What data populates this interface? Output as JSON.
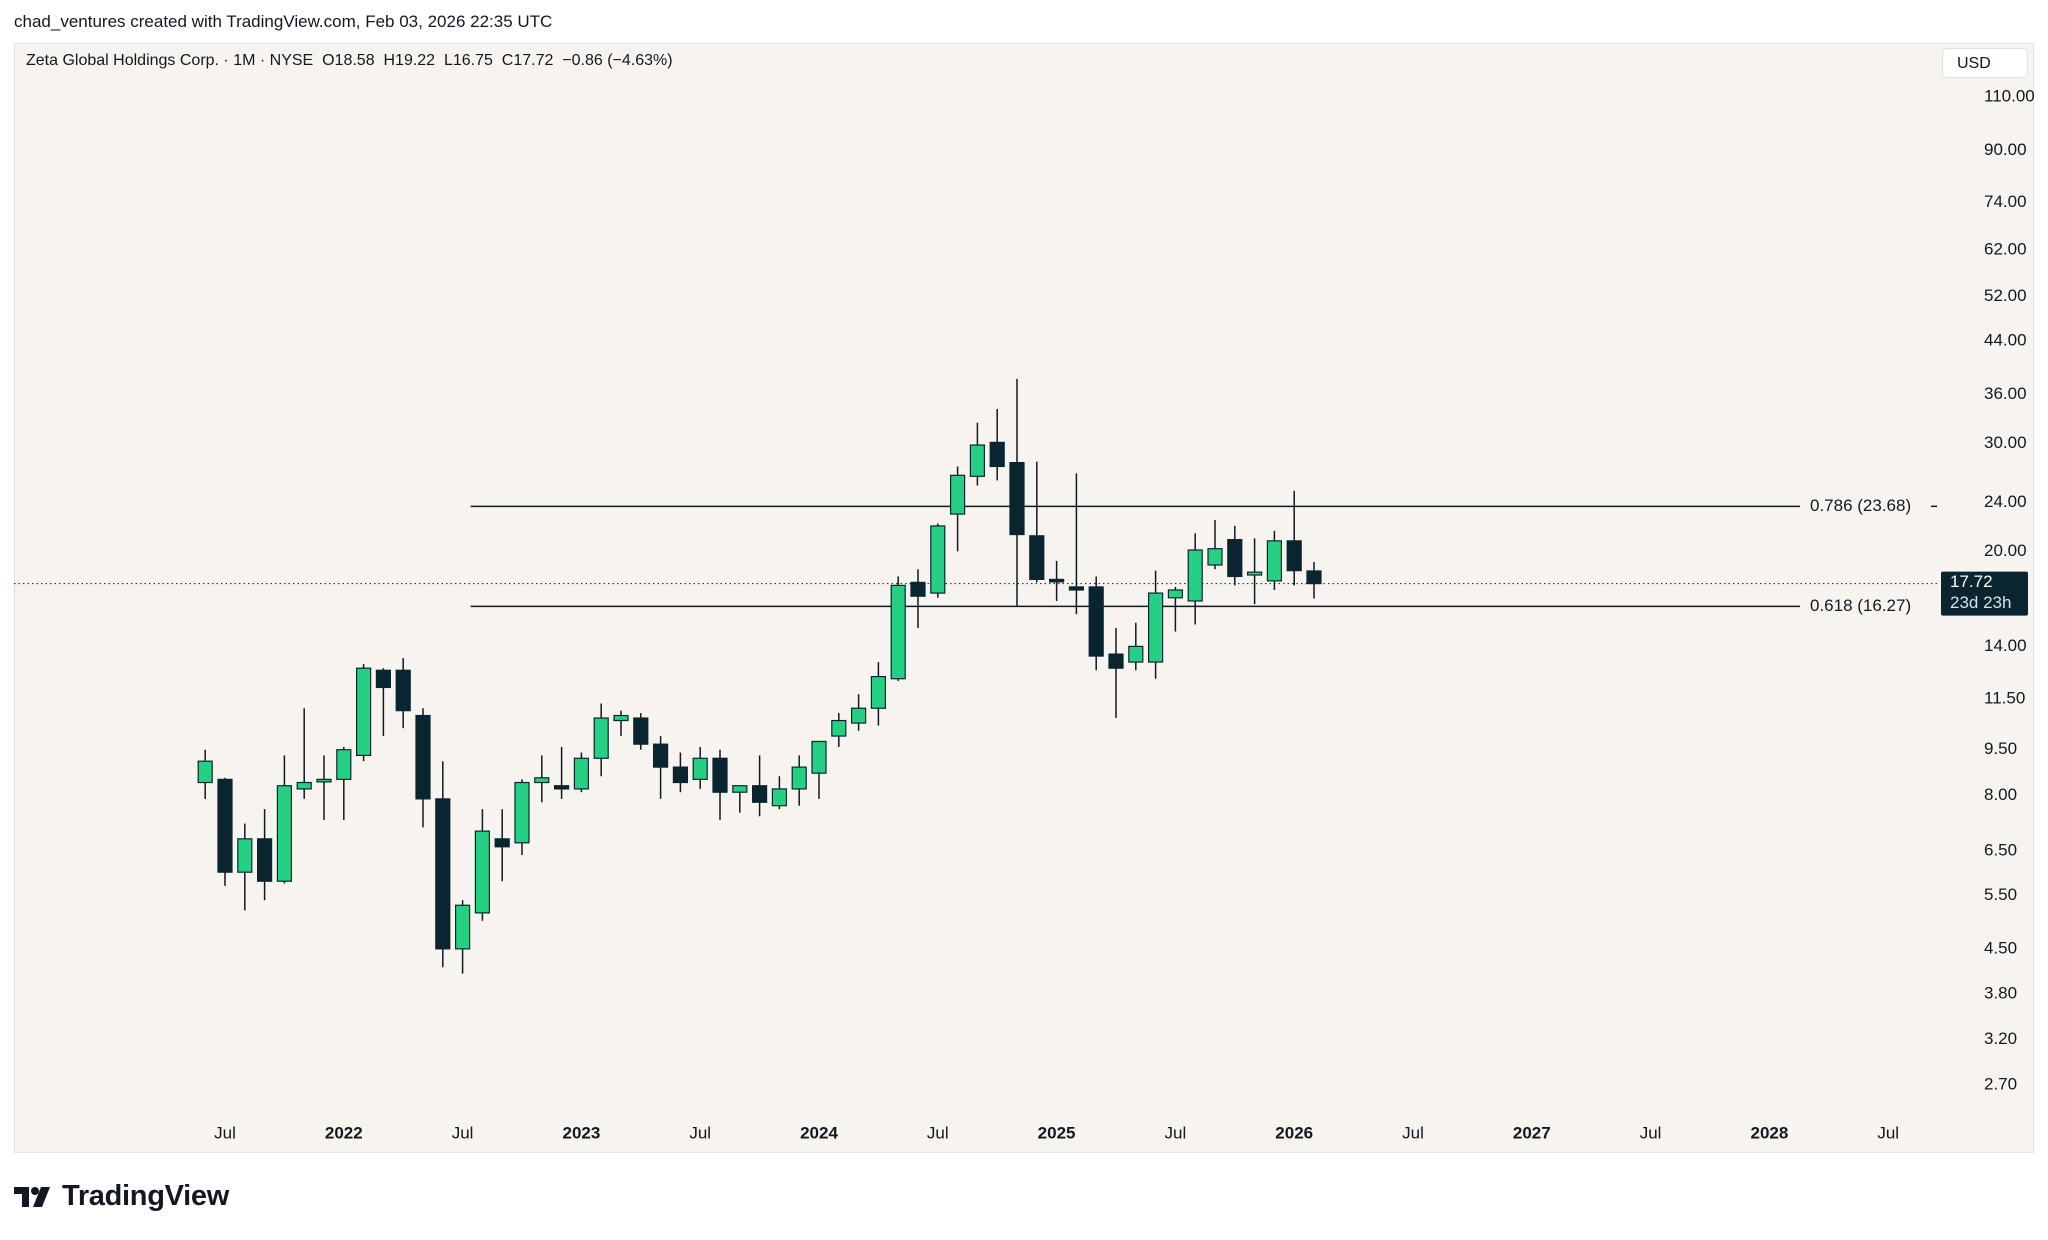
{
  "attribution": "chad_ventures created with TradingView.com, Feb 03, 2026 22:35 UTC",
  "legend": {
    "symbol": "Zeta Global Holdings Corp. · 1M · NYSE",
    "open": "O18.58",
    "high": "H19.22",
    "low": "L16.75",
    "close": "C17.72",
    "change": "−0.86 (−4.63%)"
  },
  "currency": "USD",
  "logo_text": "TradingView",
  "last_price": {
    "value": "17.72",
    "countdown": "23d 23h"
  },
  "colors": {
    "up": "#26d083",
    "down": "#0b2530",
    "background": "#f7f4f0",
    "price_badge": "#0b2530"
  },
  "chart_data": {
    "type": "candlestick",
    "scale": "log",
    "interval": "1M",
    "y_ticks": [
      "110.00",
      "90.00",
      "74.00",
      "62.00",
      "52.00",
      "44.00",
      "36.00",
      "30.00",
      "24.00",
      "20.00",
      "14.00",
      "11.50",
      "9.50",
      "8.00",
      "6.50",
      "5.50",
      "4.50",
      "3.80",
      "3.20",
      "2.70"
    ],
    "x_ticks": [
      {
        "label": "Jul",
        "year": false,
        "date": "2021-07"
      },
      {
        "label": "2022",
        "year": true,
        "date": "2022-01"
      },
      {
        "label": "Jul",
        "year": false,
        "date": "2022-07"
      },
      {
        "label": "2023",
        "year": true,
        "date": "2023-01"
      },
      {
        "label": "Jul",
        "year": false,
        "date": "2023-07"
      },
      {
        "label": "2024",
        "year": true,
        "date": "2024-01"
      },
      {
        "label": "Jul",
        "year": false,
        "date": "2024-07"
      },
      {
        "label": "2025",
        "year": true,
        "date": "2025-01"
      },
      {
        "label": "Jul",
        "year": false,
        "date": "2025-07"
      },
      {
        "label": "2026",
        "year": true,
        "date": "2026-01"
      },
      {
        "label": "Jul",
        "year": false,
        "date": "2026-07"
      },
      {
        "label": "2027",
        "year": true,
        "date": "2027-01"
      },
      {
        "label": "Jul",
        "year": false,
        "date": "2027-07"
      },
      {
        "label": "2028",
        "year": true,
        "date": "2028-01"
      },
      {
        "label": "Jul",
        "year": false,
        "date": "2028-07"
      }
    ],
    "candles": [
      {
        "date": "2021-06",
        "o": 8.4,
        "h": 9.5,
        "l": 7.9,
        "c": 9.1
      },
      {
        "date": "2021-07",
        "o": 8.5,
        "h": 8.55,
        "l": 5.7,
        "c": 6.0
      },
      {
        "date": "2021-08",
        "o": 6.0,
        "h": 7.2,
        "l": 5.2,
        "c": 6.8
      },
      {
        "date": "2021-09",
        "o": 6.8,
        "h": 7.6,
        "l": 5.4,
        "c": 5.8
      },
      {
        "date": "2021-10",
        "o": 5.8,
        "h": 9.3,
        "l": 5.75,
        "c": 8.3
      },
      {
        "date": "2021-11",
        "o": 8.2,
        "h": 11.1,
        "l": 7.9,
        "c": 8.4
      },
      {
        "date": "2021-12",
        "o": 8.5,
        "h": 9.3,
        "l": 7.3,
        "c": 8.5
      },
      {
        "date": "2022-01",
        "o": 8.5,
        "h": 9.6,
        "l": 7.3,
        "c": 9.5
      },
      {
        "date": "2022-02",
        "o": 9.3,
        "h": 13.1,
        "l": 9.1,
        "c": 12.9
      },
      {
        "date": "2022-03",
        "o": 12.8,
        "h": 12.9,
        "l": 10.0,
        "c": 12.0
      },
      {
        "date": "2022-04",
        "o": 12.8,
        "h": 13.4,
        "l": 10.3,
        "c": 11.0
      },
      {
        "date": "2022-05",
        "o": 10.8,
        "h": 11.1,
        "l": 7.1,
        "c": 7.9
      },
      {
        "date": "2022-06",
        "o": 7.9,
        "h": 9.1,
        "l": 4.2,
        "c": 4.5
      },
      {
        "date": "2022-07",
        "o": 4.5,
        "h": 5.4,
        "l": 4.1,
        "c": 5.3
      },
      {
        "date": "2022-08",
        "o": 5.15,
        "h": 7.6,
        "l": 5.0,
        "c": 7.0
      },
      {
        "date": "2022-09",
        "o": 6.8,
        "h": 7.6,
        "l": 5.8,
        "c": 6.6
      },
      {
        "date": "2022-10",
        "o": 6.7,
        "h": 8.5,
        "l": 6.4,
        "c": 8.4
      },
      {
        "date": "2022-11",
        "o": 8.4,
        "h": 9.3,
        "l": 7.8,
        "c": 8.55
      },
      {
        "date": "2022-12",
        "o": 8.3,
        "h": 9.6,
        "l": 7.9,
        "c": 8.2
      },
      {
        "date": "2023-01",
        "o": 8.2,
        "h": 9.4,
        "l": 8.1,
        "c": 9.2
      },
      {
        "date": "2023-02",
        "o": 9.2,
        "h": 11.3,
        "l": 8.6,
        "c": 10.7
      },
      {
        "date": "2023-03",
        "o": 10.6,
        "h": 11.0,
        "l": 10.0,
        "c": 10.8
      },
      {
        "date": "2023-04",
        "o": 10.7,
        "h": 10.9,
        "l": 9.5,
        "c": 9.7
      },
      {
        "date": "2023-05",
        "o": 9.7,
        "h": 10.0,
        "l": 7.9,
        "c": 8.9
      },
      {
        "date": "2023-06",
        "o": 8.9,
        "h": 9.4,
        "l": 8.1,
        "c": 8.4
      },
      {
        "date": "2023-07",
        "o": 8.5,
        "h": 9.6,
        "l": 8.2,
        "c": 9.2
      },
      {
        "date": "2023-08",
        "o": 9.2,
        "h": 9.5,
        "l": 7.3,
        "c": 8.1
      },
      {
        "date": "2023-09",
        "o": 8.1,
        "h": 8.3,
        "l": 7.5,
        "c": 8.3
      },
      {
        "date": "2023-10",
        "o": 8.3,
        "h": 9.3,
        "l": 7.4,
        "c": 7.8
      },
      {
        "date": "2023-11",
        "o": 7.7,
        "h": 8.6,
        "l": 7.6,
        "c": 8.2
      },
      {
        "date": "2023-12",
        "o": 8.2,
        "h": 9.3,
        "l": 7.7,
        "c": 8.9
      },
      {
        "date": "2024-01",
        "o": 8.7,
        "h": 9.8,
        "l": 7.9,
        "c": 9.8
      },
      {
        "date": "2024-02",
        "o": 10.0,
        "h": 10.9,
        "l": 9.6,
        "c": 10.6
      },
      {
        "date": "2024-03",
        "o": 10.5,
        "h": 11.7,
        "l": 10.2,
        "c": 11.1
      },
      {
        "date": "2024-04",
        "o": 11.1,
        "h": 13.2,
        "l": 10.4,
        "c": 12.5
      },
      {
        "date": "2024-05",
        "o": 12.4,
        "h": 18.2,
        "l": 12.3,
        "c": 17.6
      },
      {
        "date": "2024-06",
        "o": 17.8,
        "h": 18.7,
        "l": 15.0,
        "c": 16.9
      },
      {
        "date": "2024-07",
        "o": 17.1,
        "h": 22.2,
        "l": 16.8,
        "c": 22.0
      },
      {
        "date": "2024-08",
        "o": 23.0,
        "h": 27.5,
        "l": 20.0,
        "c": 26.6
      },
      {
        "date": "2024-09",
        "o": 26.5,
        "h": 32.4,
        "l": 25.6,
        "c": 29.8
      },
      {
        "date": "2024-10",
        "o": 30.1,
        "h": 34.1,
        "l": 26.1,
        "c": 27.5
      },
      {
        "date": "2024-11",
        "o": 27.9,
        "h": 38.2,
        "l": 16.3,
        "c": 21.3
      },
      {
        "date": "2024-12",
        "o": 21.2,
        "h": 28.0,
        "l": 17.8,
        "c": 18.0
      },
      {
        "date": "2025-01",
        "o": 18.0,
        "h": 19.3,
        "l": 16.6,
        "c": 17.9
      },
      {
        "date": "2025-02",
        "o": 17.5,
        "h": 26.8,
        "l": 15.8,
        "c": 17.3
      },
      {
        "date": "2025-03",
        "o": 17.5,
        "h": 18.2,
        "l": 12.8,
        "c": 13.5
      },
      {
        "date": "2025-04",
        "o": 13.6,
        "h": 15.0,
        "l": 10.7,
        "c": 12.9
      },
      {
        "date": "2025-05",
        "o": 13.2,
        "h": 15.3,
        "l": 12.8,
        "c": 14.0
      },
      {
        "date": "2025-06",
        "o": 13.2,
        "h": 18.6,
        "l": 12.4,
        "c": 17.1
      },
      {
        "date": "2025-07",
        "o": 16.8,
        "h": 17.5,
        "l": 14.8,
        "c": 17.3
      },
      {
        "date": "2025-08",
        "o": 16.6,
        "h": 21.4,
        "l": 15.2,
        "c": 20.1
      },
      {
        "date": "2025-09",
        "o": 19.0,
        "h": 22.5,
        "l": 18.7,
        "c": 20.2
      },
      {
        "date": "2025-10",
        "o": 20.9,
        "h": 22.0,
        "l": 17.6,
        "c": 18.2
      },
      {
        "date": "2025-11",
        "o": 18.3,
        "h": 21.0,
        "l": 16.4,
        "c": 18.5
      },
      {
        "date": "2025-12",
        "o": 17.9,
        "h": 21.6,
        "l": 17.3,
        "c": 20.8
      },
      {
        "date": "2026-01",
        "o": 20.8,
        "h": 25.1,
        "l": 17.6,
        "c": 18.6
      },
      {
        "date": "2026-02",
        "o": 18.58,
        "h": 19.22,
        "l": 16.75,
        "c": 17.72
      }
    ],
    "fib_levels": [
      {
        "ratio": "0.786",
        "value": 23.68,
        "label": "0.786 (23.68)",
        "from": "2022-07"
      },
      {
        "ratio": "0.618",
        "value": 16.27,
        "label": "0.618 (16.27)",
        "from": "2022-07"
      }
    ]
  }
}
